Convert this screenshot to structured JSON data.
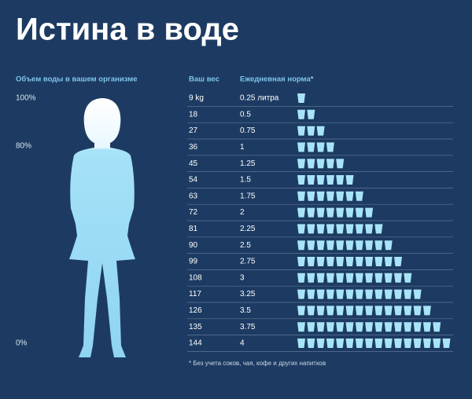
{
  "header": {
    "title": "Истина в воде"
  },
  "body_scale": {
    "title": "Объем воды в вашем организме",
    "labels": [
      "100%",
      "80%",
      "0%"
    ]
  },
  "table": {
    "columns": [
      "Ваш вес",
      "Ежедневная норма*"
    ],
    "rows": [
      [
        "9 kg",
        "0.25 литра"
      ],
      [
        "18",
        "0.5"
      ],
      [
        "27",
        "0.75"
      ],
      [
        "36",
        "1"
      ],
      [
        "45",
        "1.25"
      ],
      [
        "54",
        "1.5"
      ],
      [
        "63",
        "1.75"
      ],
      [
        "72",
        "2"
      ],
      [
        "81",
        "2.25"
      ],
      [
        "90",
        "2.5"
      ],
      [
        "99",
        "2.75"
      ],
      [
        "108",
        "3"
      ],
      [
        "117",
        "3.25"
      ],
      [
        "126",
        "3.5"
      ],
      [
        "135",
        "3.75"
      ],
      [
        "144",
        "4"
      ]
    ]
  },
  "footnote": "* Без учета соков, чая, кофе и других напитков"
}
